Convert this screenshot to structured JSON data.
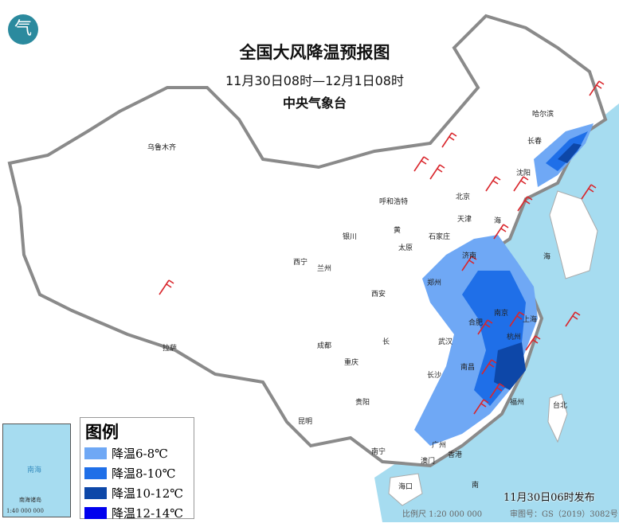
{
  "header": {
    "title": "全国大风降温预报图",
    "period": "11月30日08时—12月1日08时",
    "agency": "中央气象台",
    "logo_text": "气"
  },
  "legend": {
    "title": "图例",
    "items": [
      {
        "label": "降温6-8℃",
        "color": "#6fa8f5"
      },
      {
        "label": "降温8-10℃",
        "color": "#1f6fe8"
      },
      {
        "label": "降温10-12℃",
        "color": "#0d47a8"
      },
      {
        "label": "降温12-14℃",
        "color": "#0000ee"
      }
    ]
  },
  "colors": {
    "sea": "#a6dcf0",
    "land": "#ffffff",
    "border": "#8a8a8a",
    "wind_barb": "#d9262c"
  },
  "cities": [
    "乌鲁木齐",
    "哈尔滨",
    "长春",
    "沈阳",
    "呼和浩特",
    "北京",
    "天津",
    "石家庄",
    "太原",
    "银川",
    "西宁",
    "兰州",
    "济南",
    "郑州",
    "西安",
    "合肥",
    "南京",
    "上海",
    "武汉",
    "杭州",
    "成都",
    "拉萨",
    "重庆",
    "长沙",
    "南昌",
    "福州",
    "贵阳",
    "昆明",
    "南宁",
    "广州",
    "澳门",
    "香港",
    "海口",
    "台北",
    "海",
    "黄",
    "长",
    "南",
    "海"
  ],
  "inset": {
    "sea_label": "南海",
    "islands": "南海诸岛",
    "scale": "1:40 000 000"
  },
  "footer": {
    "published": "11月30日06时发布",
    "scale": "比例尺 1:20 000 000",
    "approval": "审图号：GS（2019）3082号"
  }
}
